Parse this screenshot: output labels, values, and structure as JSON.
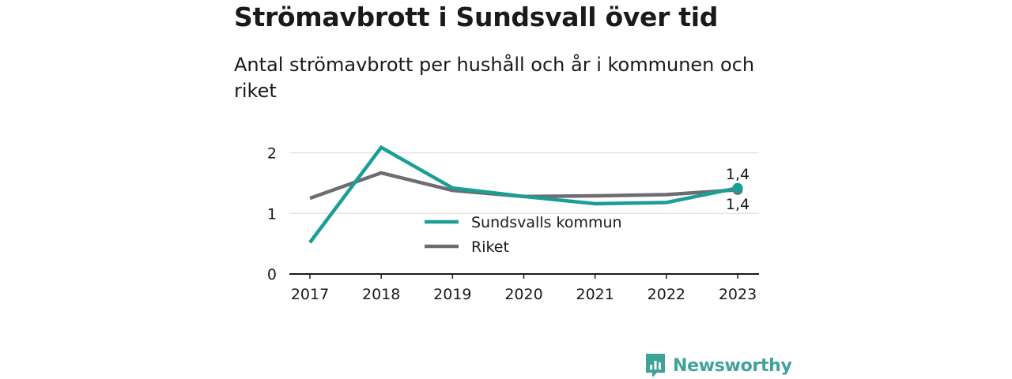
{
  "header": {
    "title": "Strömavbrott i Sundsvall över tid",
    "subtitle": "Antal strömavbrott per hushåll och år i kommunen och riket"
  },
  "brand": {
    "name": "Newsworthy",
    "color": "#3fa39a",
    "icon": "newsworthy-logo-icon"
  },
  "chart_data": {
    "type": "line",
    "x": [
      "2017",
      "2018",
      "2019",
      "2020",
      "2021",
      "2022",
      "2023"
    ],
    "ylim": [
      0,
      2.1
    ],
    "yticks": [
      0,
      1,
      2
    ],
    "ytick_labels": [
      "0",
      "1",
      "2"
    ],
    "grid": true,
    "legend_position": "center-bottom",
    "series": [
      {
        "name": "Sundsvalls kommun",
        "color": "#1a9e95",
        "values": [
          0.52,
          2.09,
          1.42,
          1.28,
          1.16,
          1.18,
          1.42
        ],
        "end_label": "1,4"
      },
      {
        "name": "Riket",
        "color": "#6e6c73",
        "values": [
          1.25,
          1.67,
          1.38,
          1.28,
          1.29,
          1.31,
          1.39
        ],
        "end_label": "1,4"
      }
    ]
  }
}
